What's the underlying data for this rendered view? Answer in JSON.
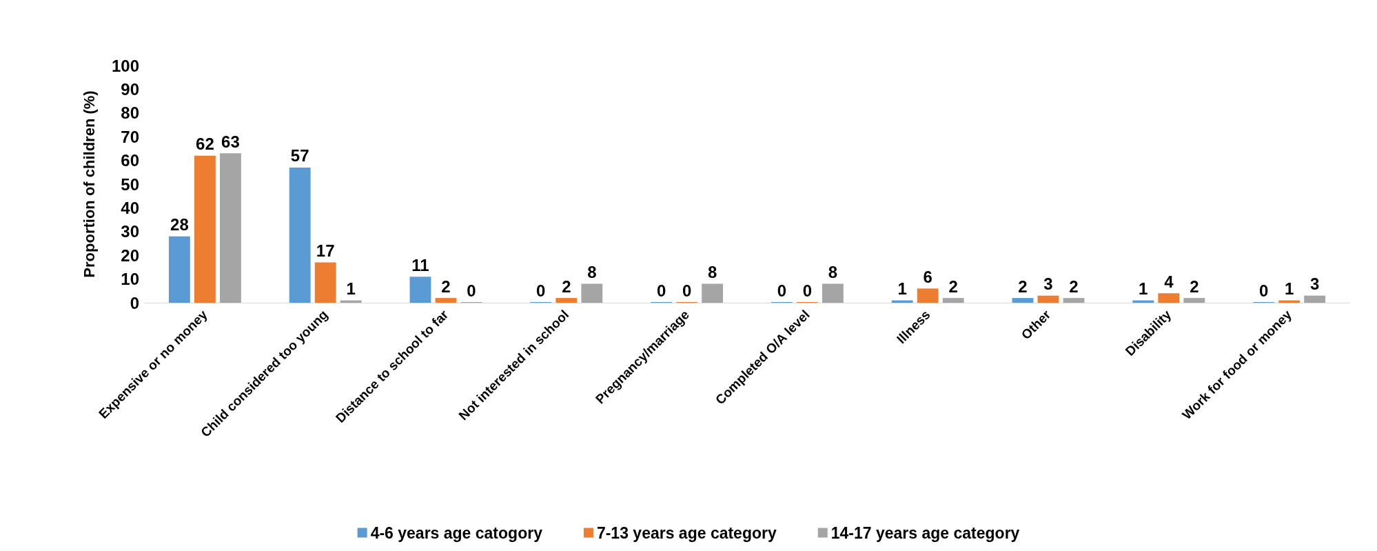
{
  "chart_data": {
    "type": "bar",
    "ylabel": "Proportion of children (%)",
    "categories": [
      "Expensive or no money",
      "Child considered too young",
      "Distance to school to far",
      "Not interested in school",
      "Pregnancy/marriage",
      "Completed O/A level",
      "Illness",
      "Other",
      "Disability",
      "Work for food or money"
    ],
    "series": [
      {
        "name": "4-6 years age catogory",
        "color": "#5b9bd5",
        "values": [
          28,
          57,
          11,
          0,
          0,
          0,
          1,
          2,
          1,
          0
        ]
      },
      {
        "name": "7-13 years age category",
        "color": "#ed7d31",
        "values": [
          62,
          17,
          2,
          2,
          0,
          0,
          6,
          3,
          4,
          1
        ]
      },
      {
        "name": "14-17 years age category",
        "color": "#a5a5a5",
        "values": [
          63,
          1,
          0,
          8,
          8,
          8,
          2,
          2,
          2,
          3
        ]
      }
    ],
    "ylim": [
      0,
      100
    ],
    "yticks": [
      0,
      10,
      20,
      30,
      40,
      50,
      60,
      70,
      80,
      90,
      100
    ],
    "grid": false,
    "legend": "bottom",
    "data_labels": true
  }
}
